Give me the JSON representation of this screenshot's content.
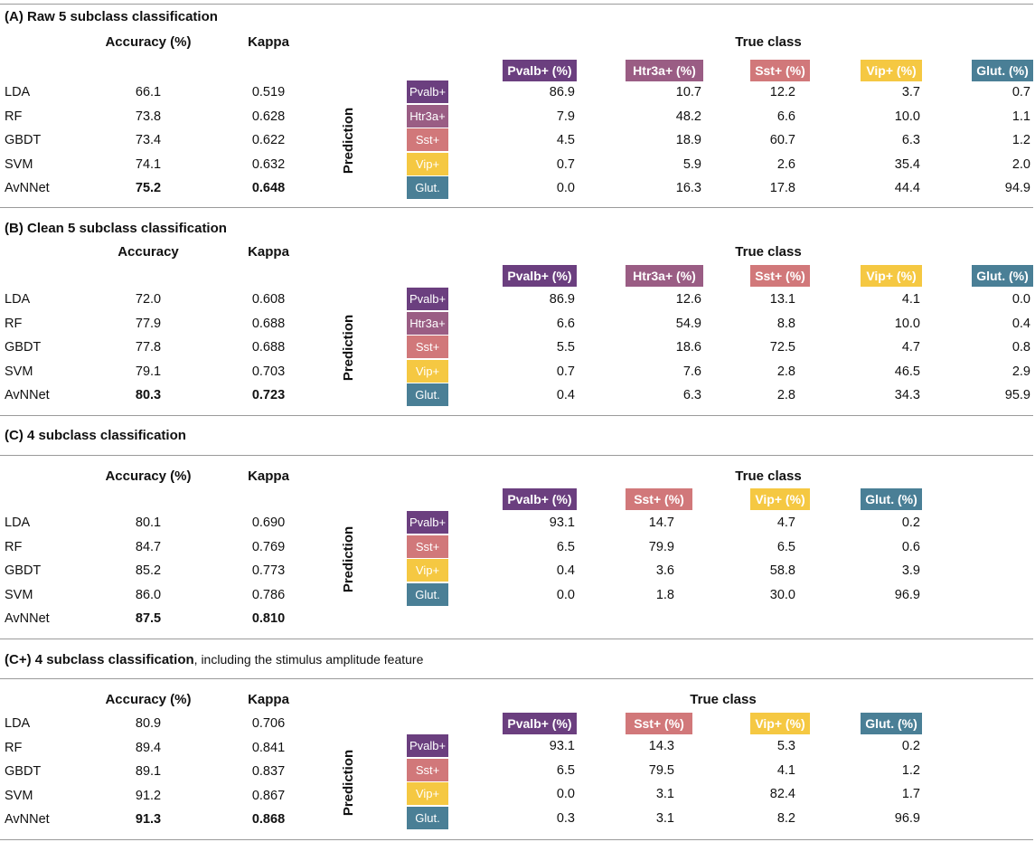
{
  "colors": {
    "pvalb": "#6b3f7f",
    "htr3a": "#9a5d84",
    "sst": "#d1787a",
    "vip": "#f5c842",
    "glut": "#4a7f96"
  },
  "sections": [
    {
      "title_bold": "(A) Raw 5 subclass classification",
      "title_normal": "",
      "acc_header": "Accuracy (%)",
      "kappa_header": "Kappa",
      "true_class_header": "True class",
      "prediction_header": "Prediction",
      "methods": [
        {
          "name": "LDA",
          "accuracy": "66.1",
          "kappa": "0.519",
          "best": false
        },
        {
          "name": "RF",
          "accuracy": "73.8",
          "kappa": "0.628",
          "best": false
        },
        {
          "name": "GBDT",
          "accuracy": "73.4",
          "kappa": "0.622",
          "best": false
        },
        {
          "name": "SVM",
          "accuracy": "74.1",
          "kappa": "0.632",
          "best": false
        },
        {
          "name": "AvNNet",
          "accuracy": "75.2",
          "kappa": "0.648",
          "best": true
        }
      ],
      "true_classes": [
        {
          "label": "Pvalb+ (%)",
          "color": "pvalb"
        },
        {
          "label": "Htr3a+ (%)",
          "color": "htr3a"
        },
        {
          "label": "Sst+ (%)",
          "color": "sst"
        },
        {
          "label": "Vip+ (%)",
          "color": "vip"
        },
        {
          "label": "Glut. (%)",
          "color": "glut"
        }
      ],
      "pred_classes": [
        {
          "label": "Pvalb+",
          "color": "pvalb"
        },
        {
          "label": "Htr3a+",
          "color": "htr3a"
        },
        {
          "label": "Sst+",
          "color": "sst"
        },
        {
          "label": "Vip+",
          "color": "vip"
        },
        {
          "label": "Glut.",
          "color": "glut"
        }
      ],
      "matrix": [
        [
          "86.9",
          "10.7",
          "12.2",
          "3.7",
          "0.7"
        ],
        [
          "7.9",
          "48.2",
          "6.6",
          "10.0",
          "1.1"
        ],
        [
          "4.5",
          "18.9",
          "60.7",
          "6.3",
          "1.2"
        ],
        [
          "0.7",
          "5.9",
          "2.6",
          "35.4",
          "2.0"
        ],
        [
          "0.0",
          "16.3",
          "17.8",
          "44.4",
          "94.9"
        ]
      ]
    },
    {
      "title_bold": "(B) Clean 5 subclass classification",
      "title_normal": "",
      "acc_header": "Accuracy",
      "kappa_header": "Kappa",
      "true_class_header": "True class",
      "prediction_header": "Prediction",
      "methods": [
        {
          "name": "LDA",
          "accuracy": "72.0",
          "kappa": "0.608",
          "best": false
        },
        {
          "name": "RF",
          "accuracy": "77.9",
          "kappa": "0.688",
          "best": false
        },
        {
          "name": "GBDT",
          "accuracy": "77.8",
          "kappa": "0.688",
          "best": false
        },
        {
          "name": "SVM",
          "accuracy": "79.1",
          "kappa": "0.703",
          "best": false
        },
        {
          "name": "AvNNet",
          "accuracy": "80.3",
          "kappa": "0.723",
          "best": true
        }
      ],
      "true_classes": [
        {
          "label": "Pvalb+ (%)",
          "color": "pvalb"
        },
        {
          "label": "Htr3a+ (%)",
          "color": "htr3a"
        },
        {
          "label": "Sst+ (%)",
          "color": "sst"
        },
        {
          "label": "Vip+ (%)",
          "color": "vip"
        },
        {
          "label": "Glut. (%)",
          "color": "glut"
        }
      ],
      "pred_classes": [
        {
          "label": "Pvalb+",
          "color": "pvalb"
        },
        {
          "label": "Htr3a+",
          "color": "htr3a"
        },
        {
          "label": "Sst+",
          "color": "sst"
        },
        {
          "label": "Vip+",
          "color": "vip"
        },
        {
          "label": "Glut.",
          "color": "glut"
        }
      ],
      "matrix": [
        [
          "86.9",
          "12.6",
          "13.1",
          "4.1",
          "0.0"
        ],
        [
          "6.6",
          "54.9",
          "8.8",
          "10.0",
          "0.4"
        ],
        [
          "5.5",
          "18.6",
          "72.5",
          "4.7",
          "0.8"
        ],
        [
          "0.7",
          "7.6",
          "2.8",
          "46.5",
          "2.9"
        ],
        [
          "0.4",
          "6.3",
          "2.8",
          "34.3",
          "95.9"
        ]
      ]
    },
    {
      "title_bold": "(C) 4 subclass classification",
      "title_normal": "",
      "acc_header": "Accuracy (%)",
      "kappa_header": "Kappa",
      "true_class_header": "True class",
      "prediction_header": "Prediction",
      "methods": [
        {
          "name": "LDA",
          "accuracy": "80.1",
          "kappa": "0.690",
          "best": false
        },
        {
          "name": "RF",
          "accuracy": "84.7",
          "kappa": "0.769",
          "best": false
        },
        {
          "name": "GBDT",
          "accuracy": "85.2",
          "kappa": "0.773",
          "best": false
        },
        {
          "name": "SVM",
          "accuracy": "86.0",
          "kappa": "0.786",
          "best": false
        },
        {
          "name": "AvNNet",
          "accuracy": "87.5",
          "kappa": "0.810",
          "best": true
        }
      ],
      "true_classes": [
        {
          "label": "Pvalb+ (%)",
          "color": "pvalb"
        },
        {
          "label": "Sst+ (%)",
          "color": "sst"
        },
        {
          "label": "Vip+ (%)",
          "color": "vip"
        },
        {
          "label": "Glut. (%)",
          "color": "glut"
        }
      ],
      "pred_classes": [
        {
          "label": "Pvalb+",
          "color": "pvalb"
        },
        {
          "label": "Sst+",
          "color": "sst"
        },
        {
          "label": "Vip+",
          "color": "vip"
        },
        {
          "label": "Glut.",
          "color": "glut"
        }
      ],
      "matrix": [
        [
          "93.1",
          "14.7",
          "4.7",
          "0.2"
        ],
        [
          "6.5",
          "79.9",
          "6.5",
          "0.6"
        ],
        [
          "0.4",
          "3.6",
          "58.8",
          "3.9"
        ],
        [
          "0.0",
          "1.8",
          "30.0",
          "96.9"
        ]
      ]
    },
    {
      "title_bold": "(C+) 4 subclass classification",
      "title_normal": ", including the stimulus amplitude feature",
      "acc_header": "Accuracy (%)",
      "kappa_header": "Kappa",
      "true_class_header": "True class",
      "prediction_header": "Prediction",
      "methods": [
        {
          "name": "LDA",
          "accuracy": "80.9",
          "kappa": "0.706",
          "best": false
        },
        {
          "name": "RF",
          "accuracy": "89.4",
          "kappa": "0.841",
          "best": false
        },
        {
          "name": "GBDT",
          "accuracy": "89.1",
          "kappa": "0.837",
          "best": false
        },
        {
          "name": "SVM",
          "accuracy": "91.2",
          "kappa": "0.867",
          "best": false
        },
        {
          "name": "AvNNet",
          "accuracy": "91.3",
          "kappa": "0.868",
          "best": true
        }
      ],
      "true_classes": [
        {
          "label": "Pvalb+ (%)",
          "color": "pvalb"
        },
        {
          "label": "Sst+ (%)",
          "color": "sst"
        },
        {
          "label": "Vip+ (%)",
          "color": "vip"
        },
        {
          "label": "Glut. (%)",
          "color": "glut"
        }
      ],
      "pred_classes": [
        {
          "label": "Pvalb+",
          "color": "pvalb"
        },
        {
          "label": "Sst+",
          "color": "sst"
        },
        {
          "label": "Vip+",
          "color": "vip"
        },
        {
          "label": "Glut.",
          "color": "glut"
        }
      ],
      "matrix": [
        [
          "93.1",
          "14.3",
          "5.3",
          "0.2"
        ],
        [
          "6.5",
          "79.5",
          "4.1",
          "1.2"
        ],
        [
          "0.0",
          "3.1",
          "82.4",
          "1.7"
        ],
        [
          "0.3",
          "3.1",
          "8.2",
          "96.9"
        ]
      ]
    }
  ]
}
